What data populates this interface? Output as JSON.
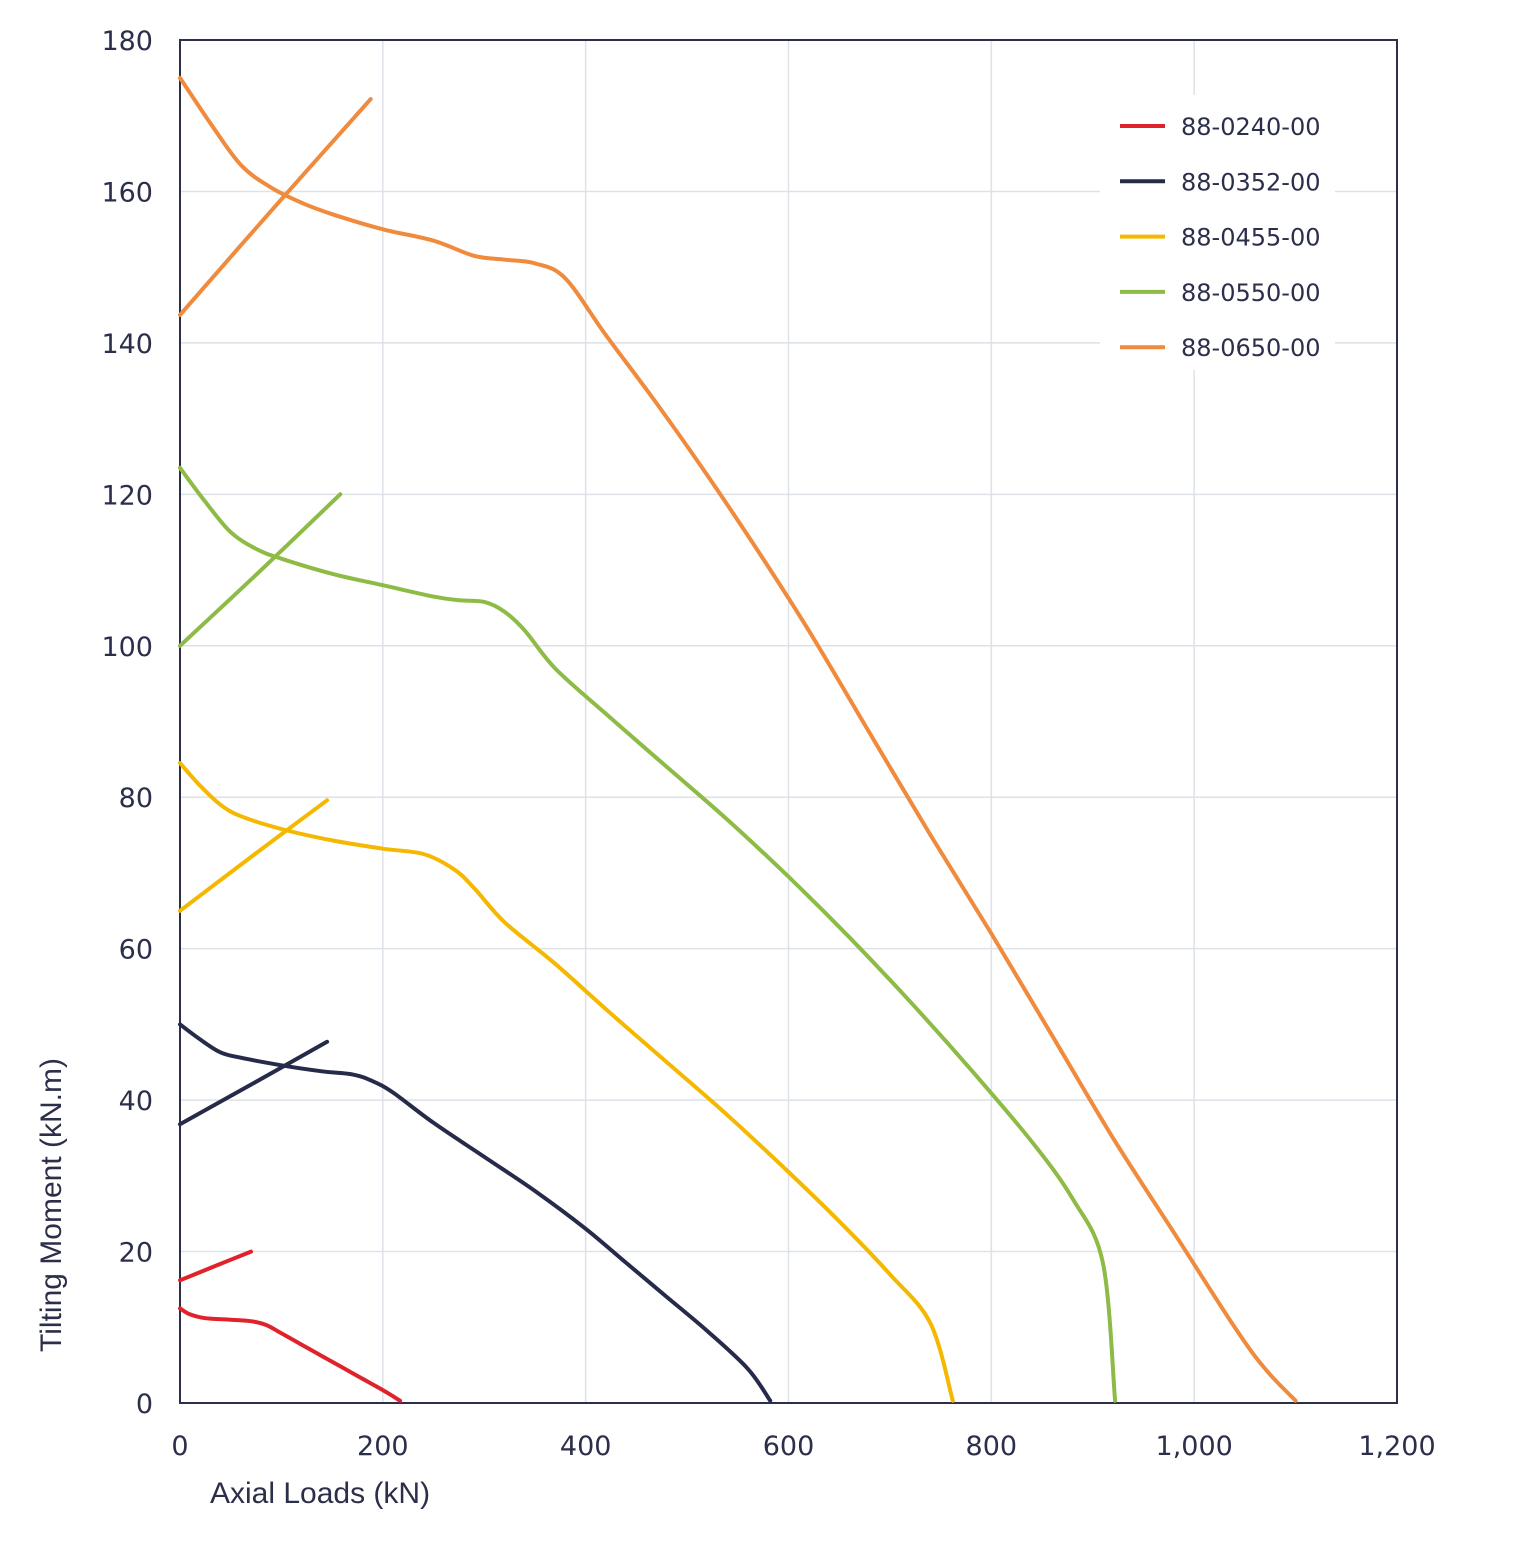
{
  "chart_data": {
    "type": "line",
    "title": "",
    "xlabel": "Axial Loads (kN)",
    "ylabel": "Tilting Moment (kN.m)",
    "xlim": [
      0,
      1200
    ],
    "ylim": [
      0,
      180
    ],
    "x_ticks": [
      0,
      200,
      400,
      600,
      800,
      1000,
      1200
    ],
    "x_tick_labels": [
      "0",
      "200",
      "400",
      "600",
      "800",
      "1,000",
      "1,200"
    ],
    "y_ticks": [
      0,
      20,
      40,
      60,
      80,
      100,
      120,
      140,
      160,
      180
    ],
    "y_tick_labels": [
      "0",
      "20",
      "40",
      "60",
      "80",
      "100",
      "120",
      "140",
      "160",
      "180"
    ],
    "grid": true,
    "legend_position": "top-right",
    "series": [
      {
        "name": "88-0240-00",
        "color": "#e0232b",
        "curves": [
          [
            [
              0,
              12.5
            ],
            [
              10,
              11.7
            ],
            [
              25,
              11.2
            ],
            [
              50,
              11.0
            ],
            [
              70,
              10.8
            ],
            [
              85,
              10.3
            ],
            [
              100,
              9.2
            ],
            [
              120,
              7.7
            ],
            [
              140,
              6.2
            ],
            [
              160,
              4.7
            ],
            [
              180,
              3.2
            ],
            [
              200,
              1.7
            ],
            [
              210,
              0.9
            ],
            [
              217,
              0.3
            ]
          ],
          [
            [
              0,
              16.2
            ],
            [
              35,
              18.1
            ],
            [
              70,
              20.0
            ]
          ]
        ]
      },
      {
        "name": "88-0352-00",
        "color": "#272b4a",
        "curves": [
          [
            [
              0,
              50.0
            ],
            [
              20,
              48.0
            ],
            [
              40,
              46.3
            ],
            [
              60,
              45.6
            ],
            [
              100,
              44.6
            ],
            [
              140,
              43.8
            ],
            [
              170,
              43.4
            ],
            [
              190,
              42.5
            ],
            [
              210,
              41.0
            ],
            [
              250,
              37.0
            ],
            [
              300,
              32.5
            ],
            [
              350,
              28.0
            ],
            [
              400,
              23.0
            ],
            [
              440,
              18.5
            ],
            [
              480,
              14.0
            ],
            [
              520,
              9.5
            ],
            [
              560,
              4.5
            ],
            [
              582,
              0.3
            ]
          ],
          [
            [
              0,
              36.8
            ],
            [
              72,
              42.2
            ],
            [
              145,
              47.7
            ]
          ]
        ]
      },
      {
        "name": "88-0455-00",
        "color": "#f5b800",
        "curves": [
          [
            [
              0,
              84.5
            ],
            [
              20,
              81.5
            ],
            [
              40,
              79.0
            ],
            [
              60,
              77.5
            ],
            [
              100,
              75.8
            ],
            [
              150,
              74.3
            ],
            [
              200,
              73.2
            ],
            [
              240,
              72.5
            ],
            [
              270,
              70.5
            ],
            [
              290,
              68.0
            ],
            [
              320,
              63.5
            ],
            [
              370,
              58.0
            ],
            [
              420,
              52.0
            ],
            [
              480,
              45.0
            ],
            [
              540,
              38.0
            ],
            [
              600,
              30.5
            ],
            [
              650,
              24.0
            ],
            [
              700,
              17.0
            ],
            [
              740,
              10.5
            ],
            [
              762,
              0.3
            ]
          ],
          [
            [
              0,
              65.0
            ],
            [
              72,
              72.3
            ],
            [
              145,
              79.6
            ]
          ]
        ]
      },
      {
        "name": "88-0550-00",
        "color": "#8dbb45",
        "curves": [
          [
            [
              0,
              123.5
            ],
            [
              25,
              119.0
            ],
            [
              50,
              115.0
            ],
            [
              75,
              112.8
            ],
            [
              100,
              111.5
            ],
            [
              150,
              109.5
            ],
            [
              200,
              108.0
            ],
            [
              250,
              106.5
            ],
            [
              275,
              106.0
            ],
            [
              300,
              105.8
            ],
            [
              320,
              104.5
            ],
            [
              340,
              102.0
            ],
            [
              370,
              97.0
            ],
            [
              420,
              91.0
            ],
            [
              480,
              84.0
            ],
            [
              540,
              77.0
            ],
            [
              600,
              69.5
            ],
            [
              660,
              61.5
            ],
            [
              720,
              53.0
            ],
            [
              780,
              44.0
            ],
            [
              840,
              34.5
            ],
            [
              880,
              27.0
            ],
            [
              910,
              18.5
            ],
            [
              922,
              0.3
            ]
          ],
          [
            [
              0,
              100.0
            ],
            [
              80,
              110.0
            ],
            [
              158,
              120.0
            ]
          ]
        ]
      },
      {
        "name": "88-0650-00",
        "color": "#f08a3c",
        "curves": [
          [
            [
              0,
              175.0
            ],
            [
              30,
              169.0
            ],
            [
              60,
              163.5
            ],
            [
              90,
              160.5
            ],
            [
              120,
              158.5
            ],
            [
              150,
              157.0
            ],
            [
              200,
              155.0
            ],
            [
              250,
              153.5
            ],
            [
              290,
              151.5
            ],
            [
              320,
              151.0
            ],
            [
              350,
              150.5
            ],
            [
              380,
              148.5
            ],
            [
              420,
              141.0
            ],
            [
              470,
              132.0
            ],
            [
              520,
              122.5
            ],
            [
              570,
              112.5
            ],
            [
              620,
              102.0
            ],
            [
              680,
              88.5
            ],
            [
              740,
              75.0
            ],
            [
              800,
              62.0
            ],
            [
              860,
              48.5
            ],
            [
              920,
              35.0
            ],
            [
              980,
              22.5
            ],
            [
              1040,
              10.0
            ],
            [
              1070,
              4.5
            ],
            [
              1100,
              0.3
            ]
          ],
          [
            [
              0,
              143.7
            ],
            [
              93,
              157.9
            ],
            [
              188,
              172.2
            ]
          ]
        ]
      }
    ]
  }
}
